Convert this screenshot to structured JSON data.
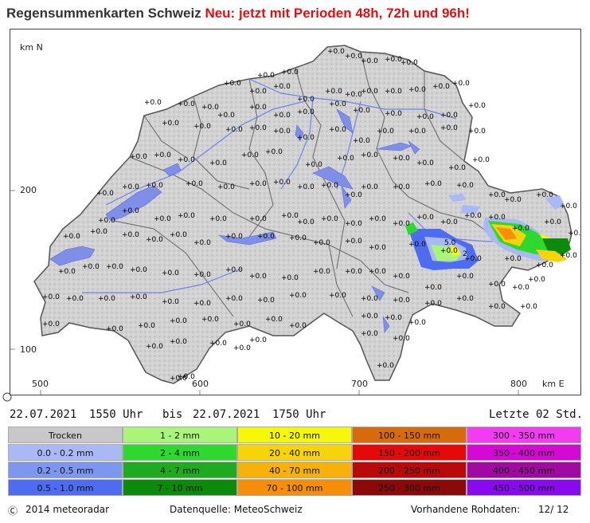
{
  "title": {
    "main": "Regensummenkarten Schweiz",
    "highlight": "Neu: jetzt mit Perioden 48h, 72h und 96h!"
  },
  "map": {
    "axis_y_unit": "km N",
    "axis_x_unit": "km E",
    "y_ticks": [
      "200",
      "100"
    ],
    "x_ticks": [
      "500",
      "600",
      "700",
      "800"
    ],
    "station_value": "+0.0",
    "special_values": [
      "5.0",
      "2"
    ]
  },
  "period": {
    "from_date": "22.07.2021",
    "from_time": "1550 Uhr",
    "separator": "bis",
    "to_date": "22.07.2021",
    "to_time": "1750 Uhr",
    "last_label": "Letzte 02 Std."
  },
  "legend": {
    "columns": [
      [
        {
          "label": "Trocken",
          "color": "#c8c8c8"
        },
        {
          "label": "0.0 - 0.2 mm",
          "color": "#a9b9f5"
        },
        {
          "label": "0.2 - 0.5 mm",
          "color": "#7d96ee"
        },
        {
          "label": "0.5 - 1.0 mm",
          "color": "#4d6cf0"
        }
      ],
      [
        {
          "label": "1 - 2 mm",
          "color": "#a8f57a"
        },
        {
          "label": "2 - 4 mm",
          "color": "#2ed82e"
        },
        {
          "label": "4 - 7 mm",
          "color": "#1faa1f"
        },
        {
          "label": "7 - 10 mm",
          "color": "#0c8a0c"
        }
      ],
      [
        {
          "label": "10 - 20 mm",
          "color": "#f7f70a"
        },
        {
          "label": "20 - 40 mm",
          "color": "#f7d40a"
        },
        {
          "label": "40 - 70 mm",
          "color": "#f7b20a"
        },
        {
          "label": "70 - 100 mm",
          "color": "#f78e0a"
        }
      ],
      [
        {
          "label": "100 - 150 mm",
          "color": "#d76a0a"
        },
        {
          "label": "150 - 200 mm",
          "color": "#e40a0a"
        },
        {
          "label": "200 - 250 mm",
          "color": "#b80a0a"
        },
        {
          "label": "250 - 300 mm",
          "color": "#8a0a0a"
        }
      ],
      [
        {
          "label": "300 - 350 mm",
          "color": "#f23cf2"
        },
        {
          "label": "350 - 400 mm",
          "color": "#d40ad4"
        },
        {
          "label": "400 - 450 mm",
          "color": "#a00aa0"
        },
        {
          "label": "450 - 500 mm",
          "color": "#8a0af0"
        }
      ]
    ]
  },
  "footer": {
    "copyright": "2014 meteoradar",
    "source": "Datenquelle: MeteoSchweiz",
    "raw_data_label": "Vorhandene Rohdaten:",
    "raw_data_value": "12/ 12"
  },
  "colors": {
    "title_red": "#e01010",
    "lake": "#7f8fe8",
    "relief": "#c9c9c9"
  }
}
